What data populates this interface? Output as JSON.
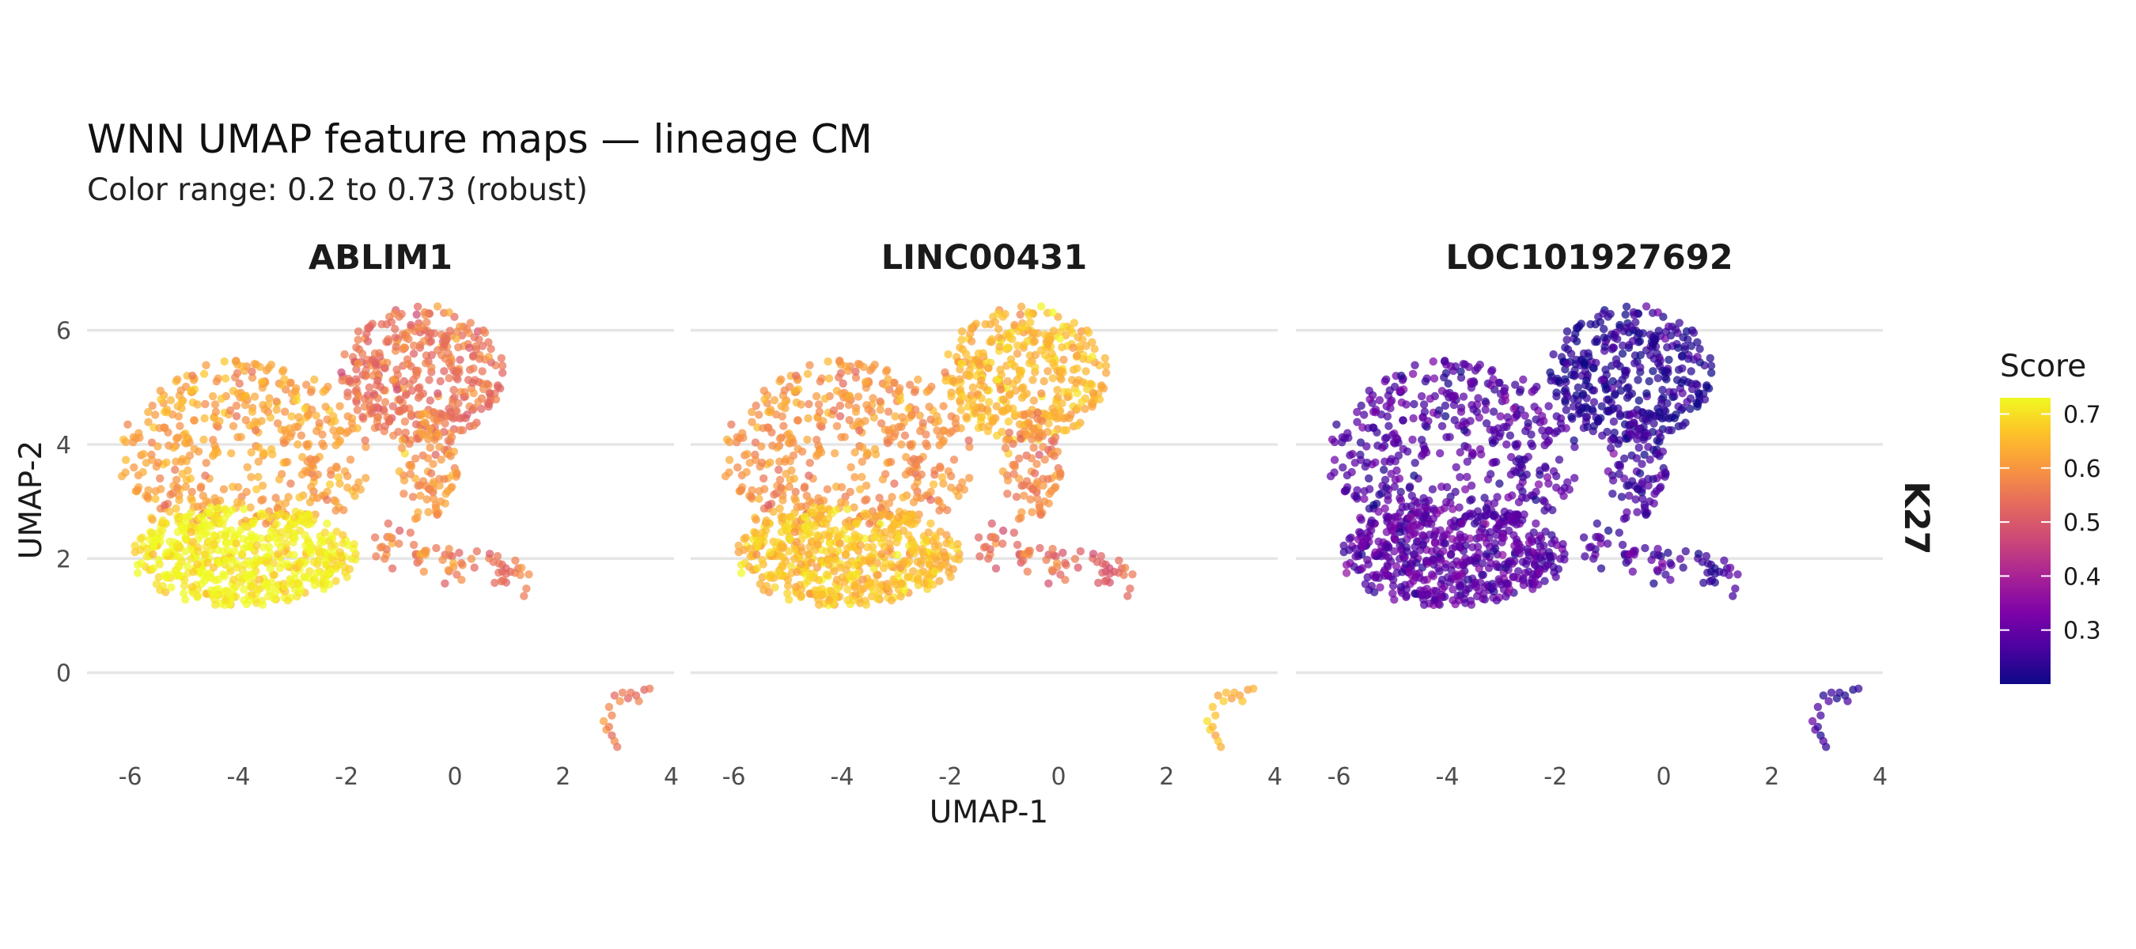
{
  "chart_data": {
    "type": "scatter",
    "title": "WNN UMAP feature maps — lineage CM",
    "subtitle": "Color range: 0.2 to 0.73 (robust)",
    "xlabel": "UMAP-1",
    "ylabel": "UMAP-2",
    "facet_row_label": "K27",
    "xlim": [
      -6.8,
      4.05
    ],
    "ylim": [
      -1.6,
      6.55
    ],
    "x_ticks": [
      "-6",
      "-4",
      "-2",
      "0",
      "2",
      "4"
    ],
    "y_ticks": [
      "6",
      "4",
      "2",
      "0"
    ],
    "legend": {
      "title": "Score",
      "position": "right",
      "range": [
        0.2,
        0.73
      ],
      "ticks": [
        "0.7",
        "0.6",
        "0.5",
        "0.4",
        "0.3"
      ],
      "colormap": "plasma"
    },
    "grid": true,
    "panels": [
      {
        "title": "ABLIM1",
        "cluster_scores": {
          "left_upper": 0.62,
          "left_lower": 0.72,
          "right_top": 0.55,
          "bridge": 0.6,
          "tail": 0.56,
          "islet": 0.55
        }
      },
      {
        "title": "LINC00431",
        "cluster_scores": {
          "left_upper": 0.6,
          "left_lower": 0.66,
          "right_top": 0.65,
          "bridge": 0.58,
          "tail": 0.53,
          "islet": 0.64
        }
      },
      {
        "title": "LOC101927692",
        "cluster_scores": {
          "left_upper": 0.28,
          "left_lower": 0.29,
          "right_top": 0.23,
          "bridge": 0.26,
          "tail": 0.26,
          "islet": 0.24
        }
      }
    ]
  }
}
